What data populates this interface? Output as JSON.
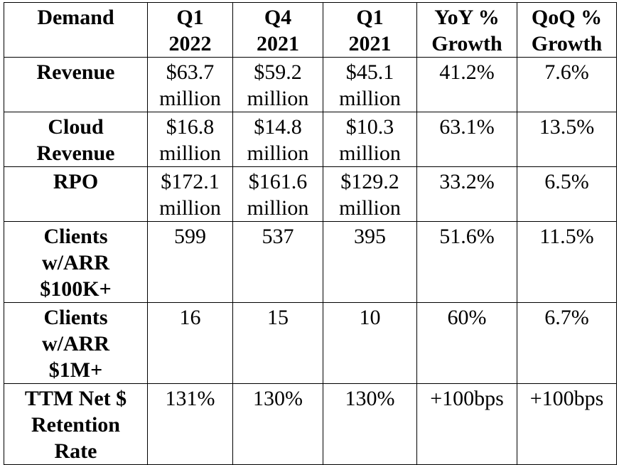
{
  "table": {
    "header": [
      [
        "Demand"
      ],
      [
        "Q1",
        "2022"
      ],
      [
        "Q4",
        "2021"
      ],
      [
        "Q1",
        "2021"
      ],
      [
        "YoY %",
        "Growth"
      ],
      [
        "QoQ %",
        "Growth"
      ]
    ],
    "rows": [
      [
        [
          "Revenue"
        ],
        [
          "$63.7",
          "million"
        ],
        [
          "$59.2",
          "million"
        ],
        [
          "$45.1",
          "million"
        ],
        [
          "41.2%"
        ],
        [
          "7.6%"
        ]
      ],
      [
        [
          "Cloud",
          "Revenue"
        ],
        [
          "$16.8",
          "million"
        ],
        [
          "$14.8",
          "million"
        ],
        [
          "$10.3",
          "million"
        ],
        [
          "63.1%"
        ],
        [
          "13.5%"
        ]
      ],
      [
        [
          "RPO"
        ],
        [
          "$172.1",
          "million"
        ],
        [
          "$161.6",
          "million"
        ],
        [
          "$129.2",
          "million"
        ],
        [
          "33.2%"
        ],
        [
          "6.5%"
        ]
      ],
      [
        [
          "Clients",
          "w/ARR",
          "$100K+"
        ],
        [
          "599"
        ],
        [
          "537"
        ],
        [
          "395"
        ],
        [
          "51.6%"
        ],
        [
          "11.5%"
        ]
      ],
      [
        [
          "Clients",
          "w/ARR",
          "$1M+"
        ],
        [
          "16"
        ],
        [
          "15"
        ],
        [
          "10"
        ],
        [
          "60%"
        ],
        [
          "6.7%"
        ]
      ],
      [
        [
          "TTM Net $",
          "Retention",
          "Rate"
        ],
        [
          "131%"
        ],
        [
          "130%"
        ],
        [
          "130%"
        ],
        [
          "+100bps"
        ],
        [
          "+100bps"
        ]
      ]
    ]
  }
}
